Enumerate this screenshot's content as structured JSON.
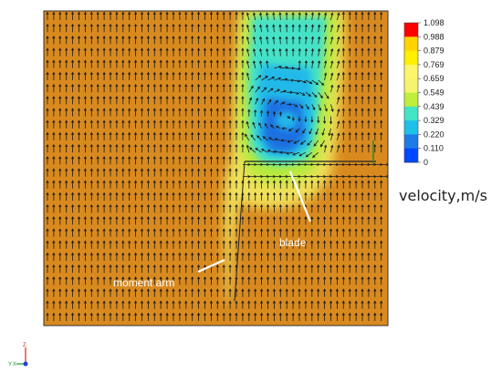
{
  "colorbar": {
    "title": "velocity,m/s",
    "ticks": [
      "1.098",
      "0.988",
      "0.879",
      "0.769",
      "0.659",
      "0.549",
      "0.439",
      "0.329",
      "0.220",
      "0.110",
      "0"
    ],
    "colors": [
      "#ff0000",
      "#ffd400",
      "#ffef00",
      "#fff56a",
      "#f6f46c",
      "#bfef3c",
      "#44e4c6",
      "#1ec0e8",
      "#1e7ae6",
      "#0048ff"
    ]
  },
  "annotations": {
    "blade": "blade",
    "moment_arm": "moment arm"
  },
  "triad": {
    "z": "Z",
    "y": "Y",
    "x": "X"
  },
  "colors": {
    "background_field": "#d98a1f",
    "arrow": "#1a1a1a",
    "plot_border": "#333333"
  }
}
